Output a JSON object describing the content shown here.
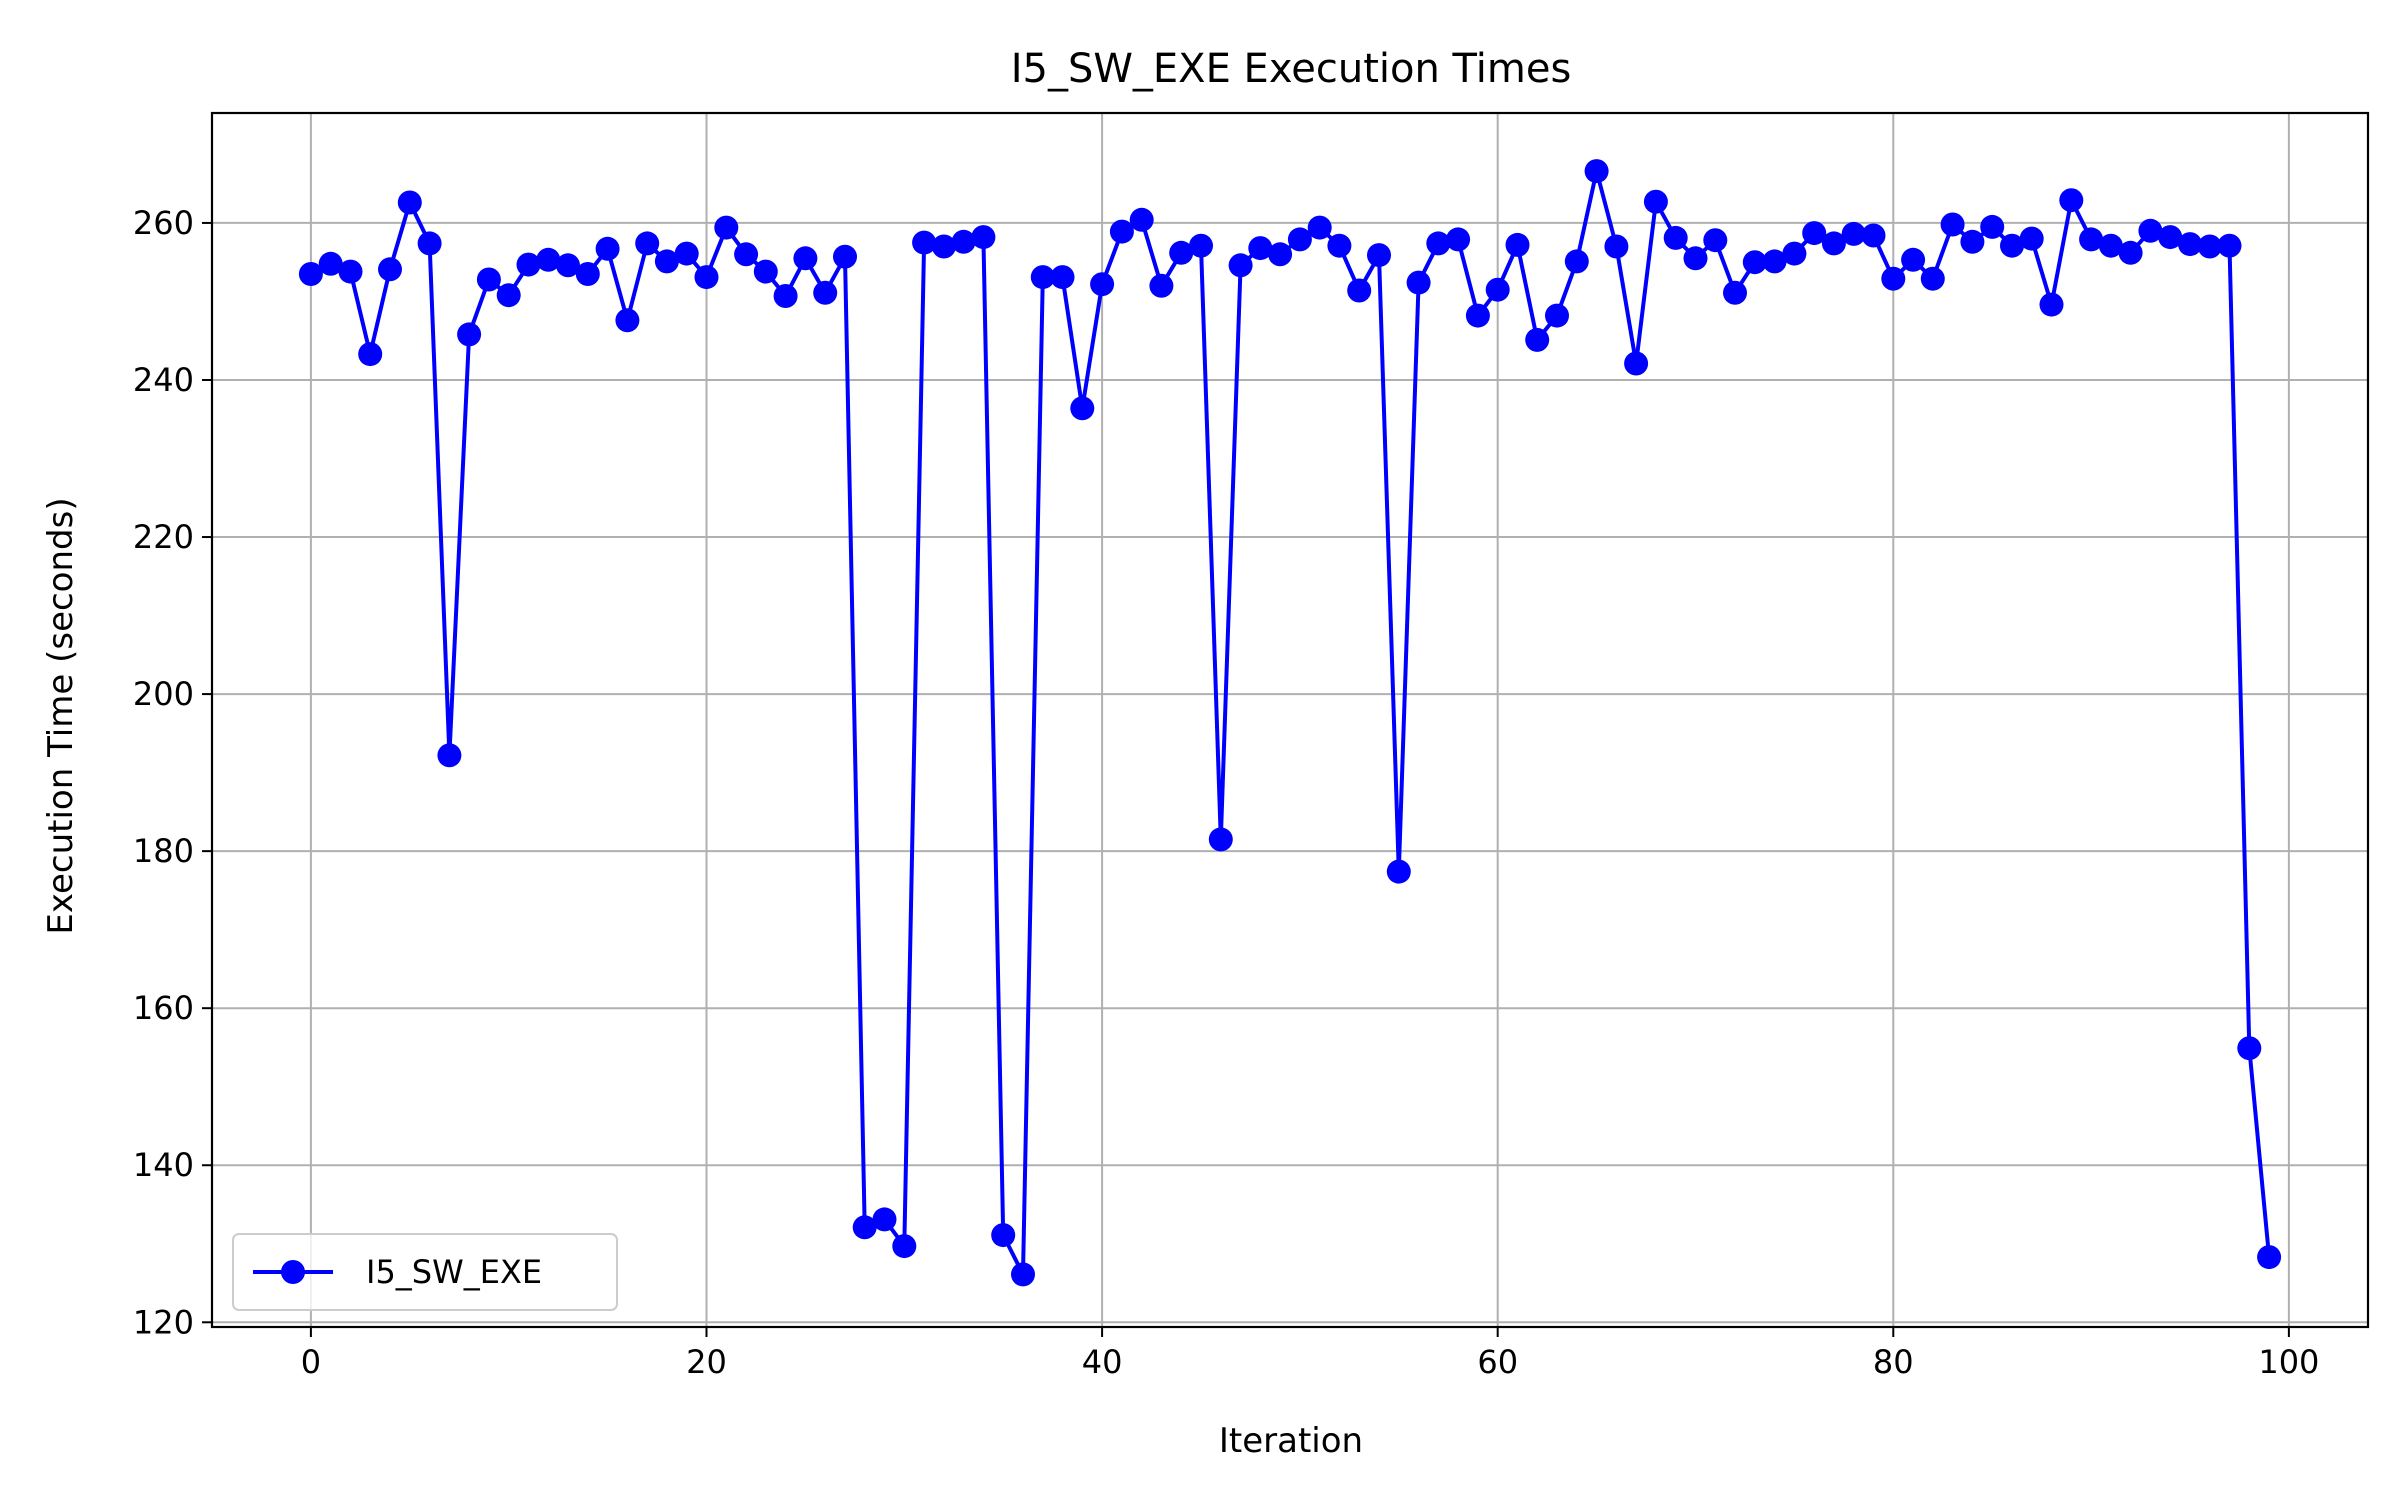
{
  "chart_data": {
    "type": "line",
    "title": "I5_SW_EXE Execution Times",
    "xlabel": "Iteration",
    "ylabel": "Execution Time (seconds)",
    "xlim": [
      -5,
      104
    ],
    "ylim": [
      119.4,
      274.0
    ],
    "x_ticks": [
      0,
      20,
      40,
      60,
      80,
      100
    ],
    "y_ticks": [
      120,
      140,
      160,
      180,
      200,
      220,
      240,
      260
    ],
    "grid": true,
    "legend_position": "lower-left",
    "series": [
      {
        "name": "I5_SW_EXE",
        "color": "#0000ff",
        "marker": "circle",
        "x": [
          0,
          1,
          2,
          3,
          4,
          5,
          6,
          7,
          8,
          9,
          10,
          11,
          12,
          13,
          14,
          15,
          16,
          17,
          18,
          19,
          20,
          21,
          22,
          23,
          24,
          25,
          26,
          27,
          28,
          29,
          30,
          31,
          32,
          33,
          34,
          35,
          36,
          37,
          38,
          39,
          40,
          41,
          42,
          43,
          44,
          45,
          46,
          47,
          48,
          49,
          50,
          51,
          52,
          53,
          54,
          55,
          56,
          57,
          58,
          59,
          60,
          61,
          62,
          63,
          64,
          65,
          66,
          67,
          68,
          69,
          70,
          71,
          72,
          73,
          74,
          75,
          76,
          77,
          78,
          79,
          80,
          81,
          82,
          83,
          84,
          85,
          86,
          87,
          88,
          89,
          90,
          91,
          92,
          93,
          94,
          95,
          96,
          97,
          98,
          99
        ],
        "values": [
          253.5,
          254.8,
          253.8,
          243.3,
          254.1,
          262.6,
          257.4,
          192.2,
          245.8,
          252.8,
          250.8,
          254.7,
          255.3,
          254.6,
          253.5,
          256.7,
          247.6,
          257.4,
          255.1,
          256.1,
          253.1,
          259.4,
          256.0,
          253.8,
          250.7,
          255.5,
          251.1,
          255.7,
          132.1,
          133.1,
          129.7,
          257.5,
          257.0,
          257.6,
          258.2,
          131.1,
          126.1,
          253.1,
          253.1,
          236.4,
          252.2,
          258.9,
          260.4,
          252.0,
          256.2,
          257.1,
          181.5,
          254.6,
          256.8,
          256.0,
          257.9,
          259.4,
          257.1,
          251.4,
          255.9,
          177.4,
          252.4,
          257.4,
          257.9,
          248.2,
          251.5,
          257.2,
          245.1,
          248.2,
          255.1,
          266.6,
          257.0,
          242.1,
          262.7,
          258.1,
          255.5,
          257.8,
          251.1,
          255.0,
          255.1,
          256.1,
          258.7,
          257.4,
          258.6,
          258.4,
          252.9,
          255.3,
          252.9,
          259.8,
          257.6,
          259.5,
          257.1,
          258.0,
          249.6,
          262.9,
          257.9,
          257.1,
          256.2,
          259.0,
          258.2,
          257.3,
          257.0,
          257.1,
          154.9,
          128.3
        ]
      }
    ]
  }
}
